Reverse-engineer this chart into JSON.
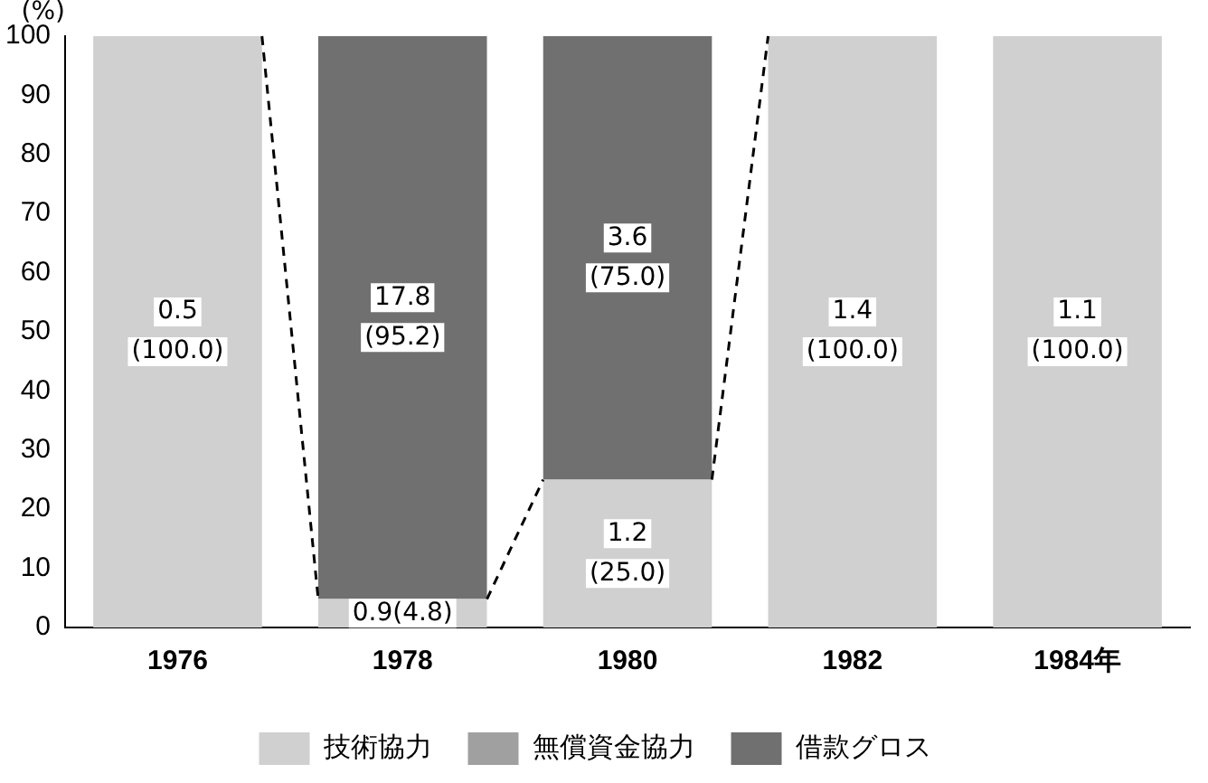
{
  "chart_data": {
    "type": "bar",
    "stacked": true,
    "ylabel": "(%)",
    "categories": [
      "1976",
      "1978",
      "1980",
      "1982",
      "1984年"
    ],
    "series": [
      {
        "name": "技術協力",
        "color": "#d0d0d0",
        "values": [
          100,
          4.8,
          25,
          100,
          100
        ],
        "value_labels": [
          "0.5\n(100.0)",
          "0.9(4.8)",
          "1.2\n(25.0)",
          "1.4\n(100.0)",
          "1.1\n(100.0)"
        ]
      },
      {
        "name": "無償資金協力",
        "color": "#a0a0a0",
        "values": [
          null,
          null,
          null,
          null,
          null
        ]
      },
      {
        "name": "借款グロス",
        "color": "#707070",
        "values": [
          null,
          95.2,
          75,
          null,
          null
        ],
        "value_labels": [
          null,
          "17.8\n(95.2)",
          "3.6\n(75.0)",
          null,
          null
        ]
      }
    ],
    "ylim": [
      0,
      100
    ],
    "yticks": [
      0,
      10,
      20,
      30,
      40,
      50,
      60,
      70,
      80,
      90,
      100
    ],
    "grid": false,
    "legend": "bottom"
  }
}
